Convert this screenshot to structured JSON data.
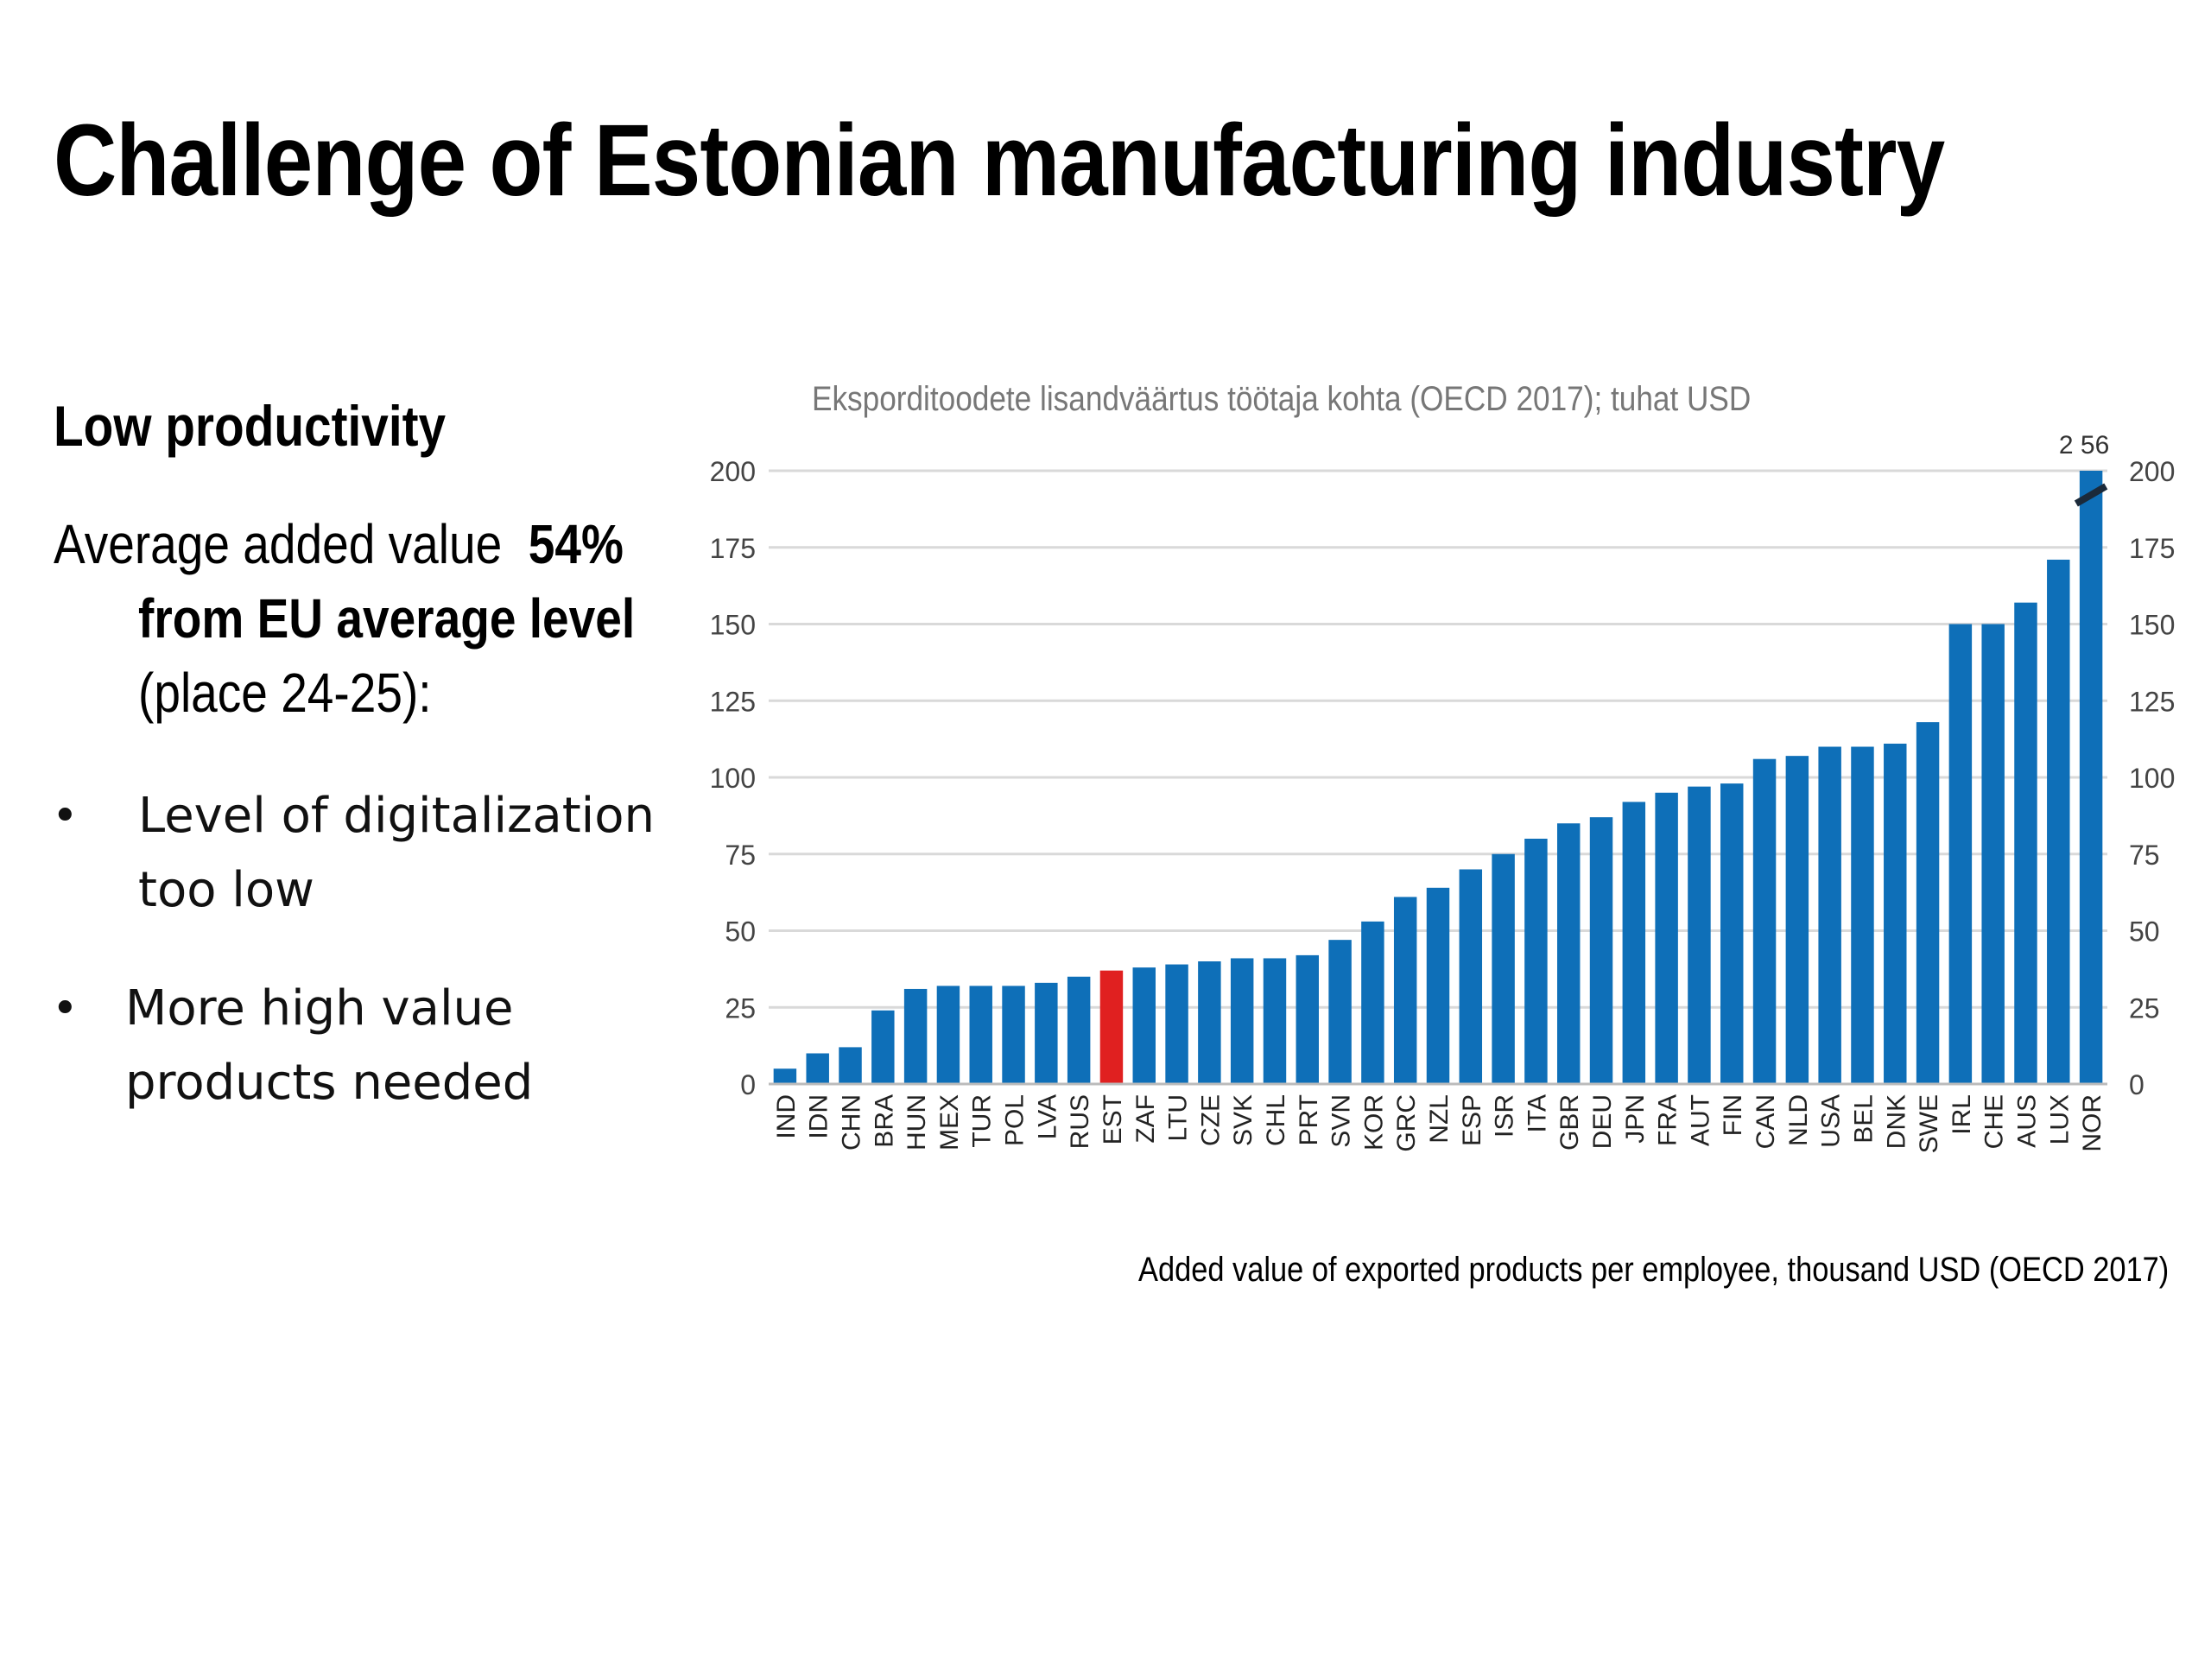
{
  "slide": {
    "title": "Challenge of Estonian manufacturing industry",
    "subhead": "Low productivity",
    "para_line1": "Average added value",
    "para_pct": "54%",
    "para_line2": "from EU average level",
    "para_line3": "(place 24-25):",
    "bullet1_line1": "Level of digitalization",
    "bullet1_line2": "too low",
    "bullet2_line1": "More high value",
    "bullet2_line2": "products needed",
    "bullet_glyph": "•",
    "caption": "Added value of exported products per employee, thousand USD (OECD 2017)"
  },
  "chart_data": {
    "type": "bar",
    "title": "Eksporditoodete lisandväärtus töötaja kohta (OECD 2017); tuhat USD",
    "categories": [
      "IND",
      "IDN",
      "CHN",
      "BRA",
      "HUN",
      "MEX",
      "TUR",
      "POL",
      "LVA",
      "RUS",
      "EST",
      "ZAF",
      "LTU",
      "CZE",
      "SVK",
      "CHL",
      "PRT",
      "SVN",
      "KOR",
      "GRC",
      "NZL",
      "ESP",
      "ISR",
      "ITA",
      "GBR",
      "DEU",
      "JPN",
      "FRA",
      "AUT",
      "FIN",
      "CAN",
      "NLD",
      "USA",
      "BEL",
      "DNK",
      "SWE",
      "IRL",
      "CHE",
      "AUS",
      "LUX",
      "NOR"
    ],
    "values": [
      5,
      10,
      12,
      24,
      31,
      32,
      32,
      32,
      33,
      35,
      37,
      38,
      39,
      40,
      41,
      41,
      42,
      47,
      53,
      61,
      64,
      70,
      75,
      80,
      85,
      87,
      92,
      95,
      97,
      98,
      106,
      107,
      110,
      110,
      111,
      118,
      150,
      150,
      157,
      171,
      256
    ],
    "highlight": {
      "category": "EST",
      "color": "#e02020"
    },
    "bar_color": "#0e6fb8",
    "break_value_label": "2 56",
    "ylim": [
      0,
      200
    ],
    "yticks": [
      0,
      25,
      50,
      75,
      100,
      125,
      150,
      175,
      200
    ],
    "grid": true,
    "secondary_axis": true
  }
}
